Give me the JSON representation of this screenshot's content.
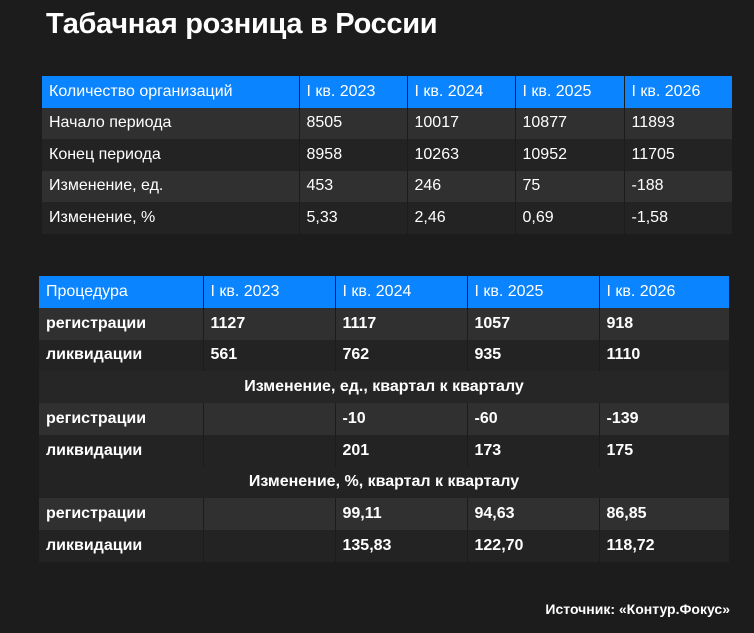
{
  "title": "Табачная розница в России",
  "table1": {
    "header": [
      "Количество организаций",
      "I кв. 2023",
      "I кв. 2024",
      "I кв. 2025",
      "I кв. 2026"
    ],
    "rows": [
      {
        "label": "Начало периода",
        "values": [
          "8505",
          "10017",
          "10877",
          "11893"
        ]
      },
      {
        "label": "Конец периода",
        "values": [
          "8958",
          "10263",
          "10952",
          "11705"
        ]
      },
      {
        "label": "Изменение, ед.",
        "values": [
          "453",
          "246",
          "75",
          "-188"
        ]
      },
      {
        "label": "Изменение, %",
        "values": [
          "5,33",
          "2,46",
          "0,69",
          "-1,58"
        ]
      }
    ]
  },
  "table2": {
    "header": [
      "Процедура",
      "I кв. 2023",
      "I кв. 2024",
      "I кв. 2025",
      "I кв. 2026"
    ],
    "rows": [
      {
        "label": "регистрации",
        "values": [
          "1127",
          "1117",
          "1057",
          "918"
        ]
      },
      {
        "label": "ликвидации",
        "values": [
          "561",
          "762",
          "935",
          "1110"
        ]
      }
    ],
    "section_units": "Изменение, ед., квартал к кварталу",
    "units_rows": [
      {
        "label": "регистрации",
        "values": [
          "",
          "-10",
          "-60",
          "-139"
        ]
      },
      {
        "label": "ликвидации",
        "values": [
          "",
          "201",
          "173",
          "175"
        ]
      }
    ],
    "section_percent": "Изменение, %, квартал к кварталу",
    "percent_rows": [
      {
        "label": "регистрации",
        "values": [
          "",
          "99,11",
          "94,63",
          "86,85"
        ]
      },
      {
        "label": "ликвидации",
        "values": [
          "",
          "135,83",
          "122,70",
          "118,72"
        ]
      }
    ]
  },
  "source": "Источник: «Контур.Фокус»",
  "colors": {
    "background": "#1c1c1c",
    "header": "#0a84ff",
    "row_light": "#303030",
    "row_dark": "#232323"
  }
}
